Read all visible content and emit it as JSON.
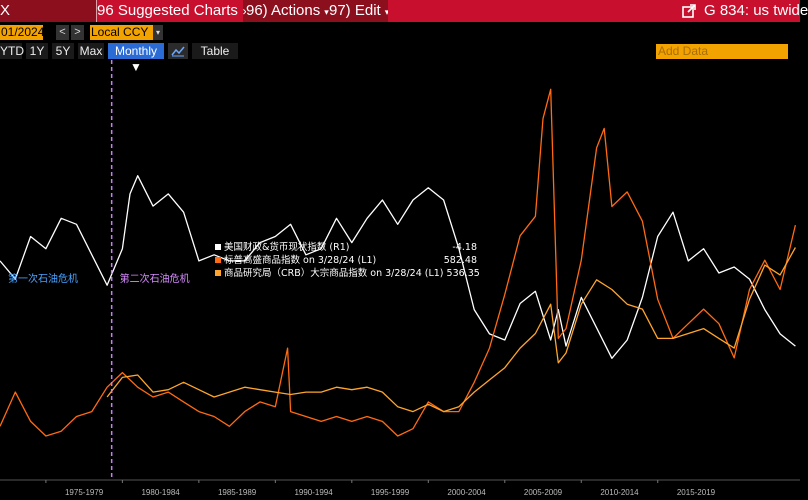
{
  "toolbar": {
    "left_fragment": "X",
    "suggested": "96 Suggested Charts",
    "actions": "96) Actions",
    "edit": "97) Edit",
    "title": "G 834: us twide",
    "caret": "▾"
  },
  "controls": {
    "date": "01/2024",
    "prev": "<",
    "next": ">",
    "currency": "Local CCY",
    "range_buttons": [
      "YTD",
      "1Y",
      "5Y",
      "Max"
    ],
    "frequency": "Monthly ▼",
    "table": "Table",
    "add_data_placeholder": "Add Data"
  },
  "chart_data": {
    "type": "line",
    "x_range": [
      1972,
      2024.3
    ],
    "x_tick_labels": [
      "1975-1979",
      "1980-1984",
      "1985-1989",
      "1990-1994",
      "1995-1999",
      "2000-2004",
      "2005-2009",
      "2010-2014",
      "2015-2019"
    ],
    "annotations": [
      {
        "text": "第一次石油危机",
        "x": 1973.8,
        "color": "#4aa3ff"
      },
      {
        "text": "第二次石油危机",
        "x": 1979.3,
        "color": "#d68bff"
      }
    ],
    "vline_x": 1979.3,
    "legend": [
      {
        "label": "美国财政&货币现状指数 (R1)",
        "value": "-4.18",
        "color": "#ffffff"
      },
      {
        "label": "标普高盛商品指数 on 3/28/24 (L1)",
        "value": "582.48",
        "color": "#ff6a13"
      },
      {
        "label": "商品研究局（CRB）大宗商品指数 on 3/28/24 (L1) 536.35",
        "value": "",
        "color": "#ffa52b"
      }
    ],
    "series": [
      {
        "color": "#ffffff",
        "x": [
          1972,
          1973,
          1974,
          1975,
          1976,
          1977,
          1978,
          1979,
          1980,
          1980.5,
          1981,
          1982,
          1983,
          1984,
          1985,
          1986,
          1987,
          1988,
          1989,
          1990,
          1991,
          1992,
          1993,
          1994,
          1995,
          1996,
          1997,
          1998,
          1999,
          2000,
          2001,
          2002,
          2003,
          2004,
          2005,
          2006,
          2007,
          2008,
          2008.5,
          2009,
          2010,
          2011,
          2012,
          2013,
          2014,
          2015,
          2016,
          2017,
          2018,
          2019,
          2020,
          2021,
          2022,
          2023,
          2024
        ],
        "y": [
          10,
          7,
          14,
          12,
          17,
          16,
          11,
          6,
          12,
          21,
          24,
          19,
          21,
          18,
          10,
          11,
          10,
          10,
          13,
          14,
          16,
          11,
          12,
          17,
          13,
          17,
          20,
          16,
          20,
          22,
          20,
          12,
          2,
          -2,
          -3,
          3,
          5,
          -3,
          2,
          -4,
          4,
          -1,
          -6,
          -3,
          4,
          14,
          18,
          10,
          12,
          8,
          9,
          7,
          2,
          -2,
          -4
        ]
      },
      {
        "color": "#ff6a13",
        "x": [
          1972,
          1973,
          1974,
          1975,
          1976,
          1977,
          1978,
          1979,
          1980,
          1981,
          1982,
          1983,
          1984,
          1985,
          1986,
          1987,
          1988,
          1989,
          1990,
          1990.8,
          1991,
          1992,
          1993,
          1994,
          1995,
          1996,
          1997,
          1998,
          1999,
          2000,
          2001,
          2002,
          2003,
          2004,
          2005,
          2006,
          2007,
          2007.5,
          2008,
          2008.5,
          2009,
          2010,
          2011,
          2011.5,
          2012,
          2013,
          2014,
          2015,
          2016,
          2017,
          2018,
          2019,
          2020,
          2021,
          2022,
          2023,
          2024
        ],
        "y": [
          170,
          240,
          180,
          150,
          160,
          190,
          200,
          250,
          280,
          250,
          230,
          240,
          220,
          200,
          190,
          170,
          200,
          220,
          210,
          330,
          200,
          190,
          180,
          190,
          180,
          190,
          180,
          150,
          165,
          220,
          200,
          200,
          260,
          330,
          440,
          560,
          600,
          800,
          860,
          350,
          370,
          510,
          740,
          780,
          620,
          650,
          590,
          430,
          350,
          380,
          410,
          380,
          310,
          450,
          510,
          450,
          582
        ]
      },
      {
        "color": "#ffa52b",
        "x": [
          1979,
          1980,
          1981,
          1982,
          1983,
          1984,
          1985,
          1986,
          1987,
          1988,
          1989,
          1990,
          1991,
          1992,
          1993,
          1994,
          1995,
          1996,
          1997,
          1998,
          1999,
          2000,
          2001,
          2002,
          2003,
          2004,
          2005,
          2006,
          2007,
          2008,
          2008.5,
          2009,
          2010,
          2011,
          2012,
          2013,
          2014,
          2015,
          2016,
          2017,
          2018,
          2019,
          2020,
          2021,
          2022,
          2023,
          2024
        ],
        "y": [
          230,
          270,
          275,
          240,
          245,
          260,
          245,
          230,
          240,
          250,
          245,
          240,
          235,
          240,
          240,
          250,
          245,
          250,
          240,
          210,
          200,
          215,
          200,
          210,
          240,
          265,
          290,
          330,
          360,
          420,
          300,
          320,
          420,
          470,
          450,
          420,
          410,
          350,
          350,
          360,
          370,
          350,
          330,
          430,
          500,
          480,
          536
        ]
      }
    ],
    "left_axis_range": [
      60,
      920
    ],
    "right_axis_range": [
      -26,
      43
    ]
  }
}
